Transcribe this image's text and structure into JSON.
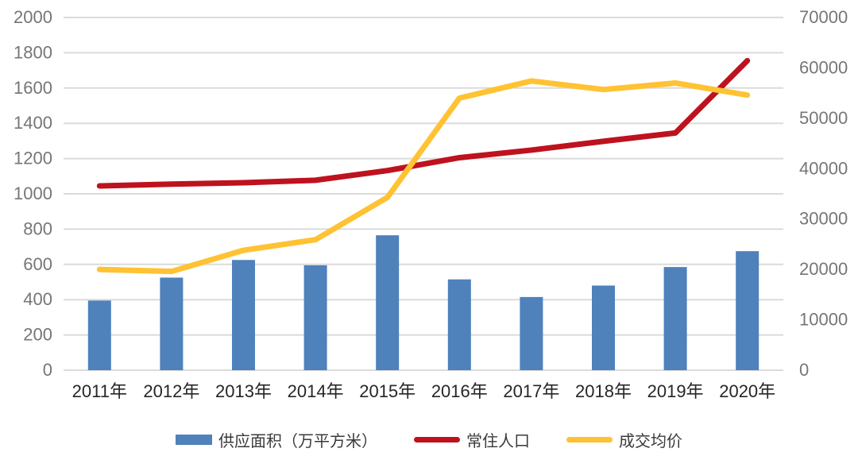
{
  "chart_data": {
    "type": "combo",
    "title": "",
    "categories": [
      "2011年",
      "2012年",
      "2013年",
      "2014年",
      "2015年",
      "2016年",
      "2017年",
      "2018年",
      "2019年",
      "2020年"
    ],
    "series": [
      {
        "name": "供应面积（万平方米）",
        "type": "bar",
        "axis": "left",
        "color": "#4F81BB",
        "values": [
          395,
          525,
          625,
          595,
          765,
          515,
          415,
          480,
          585,
          675
        ]
      },
      {
        "name": "常住人口",
        "type": "line",
        "axis": "left",
        "color": "#BE121E",
        "values": [
          1045,
          1055,
          1063,
          1077,
          1132,
          1205,
          1248,
          1298,
          1345,
          1755
        ]
      },
      {
        "name": "成交均价",
        "type": "line",
        "axis": "right",
        "color": "#FFC232",
        "values": [
          20000,
          19600,
          23800,
          25900,
          34300,
          54000,
          57400,
          55700,
          57000,
          54600
        ]
      }
    ],
    "left_axis": {
      "min": 0,
      "max": 2000,
      "step": 200,
      "tick_labels": [
        "0",
        "200",
        "400",
        "600",
        "800",
        "1000",
        "1200",
        "1400",
        "1600",
        "1800",
        "2000"
      ]
    },
    "right_axis": {
      "min": 0,
      "max": 70000,
      "step": 10000,
      "tick_labels": [
        "0",
        "10000",
        "20000",
        "30000",
        "40000",
        "50000",
        "60000",
        "70000"
      ]
    },
    "grid": true,
    "legend_position": "bottom",
    "styles": {
      "gridline_color": "#DBDBDB",
      "axis_tick_text_color": "#767676",
      "x_axis_text_color": "#262626",
      "legend_text_color": "#3a3a3a",
      "background": "#FFFFFF"
    }
  }
}
